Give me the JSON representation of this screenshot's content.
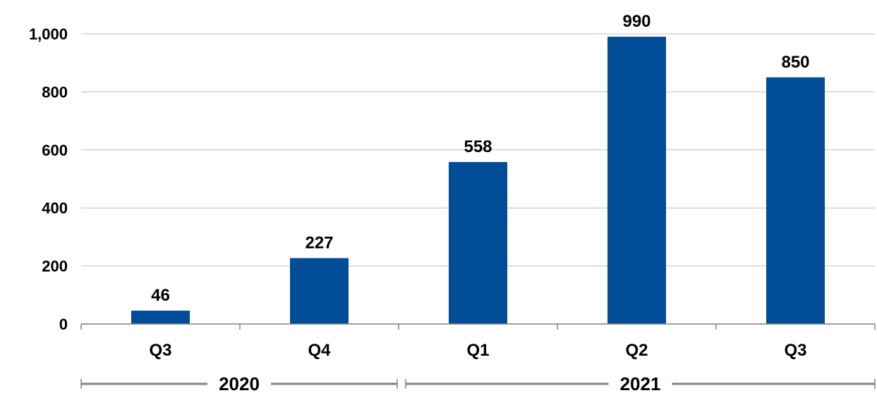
{
  "chart_data": {
    "type": "bar",
    "title": "",
    "xlabel": "",
    "ylabel": "",
    "categories": [
      "Q3",
      "Q4",
      "Q1",
      "Q2",
      "Q3"
    ],
    "groups": [
      {
        "label": "2020",
        "categories": [
          "Q3",
          "Q4"
        ]
      },
      {
        "label": "2021",
        "categories": [
          "Q1",
          "Q2",
          "Q3"
        ]
      }
    ],
    "values": [
      46,
      227,
      558,
      990,
      850
    ],
    "data_labels": [
      "46",
      "227",
      "558",
      "990",
      "850"
    ],
    "ylim": [
      0,
      1000
    ],
    "yticks": [
      0,
      200,
      400,
      600,
      800,
      1000
    ],
    "ytick_labels": [
      "0",
      "200",
      "400",
      "600",
      "800",
      "1,000"
    ],
    "grid": true,
    "legend": "none",
    "bar_color": "#004C97",
    "grid_color": "#BFBFBF",
    "axis_color": "#808080"
  }
}
